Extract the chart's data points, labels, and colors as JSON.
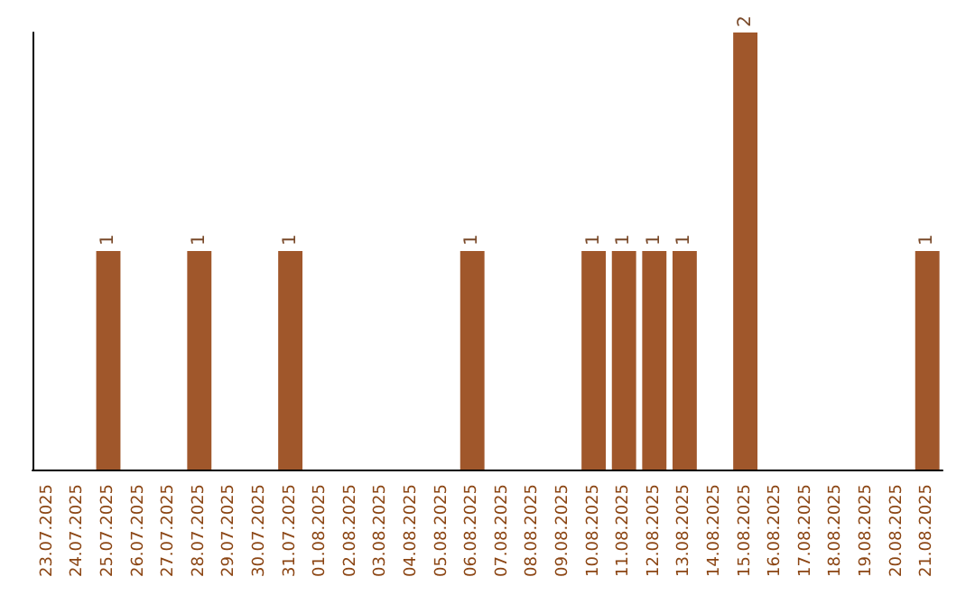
{
  "chart_data": {
    "type": "bar",
    "categories": [
      "23.07.2025",
      "24.07.2025",
      "25.07.2025",
      "26.07.2025",
      "27.07.2025",
      "28.07.2025",
      "29.07.2025",
      "30.07.2025",
      "31.07.2025",
      "01.08.2025",
      "02.08.2025",
      "03.08.2025",
      "04.08.2025",
      "05.08.2025",
      "06.08.2025",
      "07.08.2025",
      "08.08.2025",
      "09.08.2025",
      "10.08.2025",
      "11.08.2025",
      "12.08.2025",
      "13.08.2025",
      "14.08.2025",
      "15.08.2025",
      "16.08.2025",
      "17.08.2025",
      "18.08.2025",
      "19.08.2025",
      "20.08.2025",
      "21.08.2025"
    ],
    "values": [
      0,
      0,
      1,
      0,
      0,
      1,
      0,
      0,
      1,
      0,
      0,
      0,
      0,
      0,
      1,
      0,
      0,
      0,
      1,
      1,
      1,
      1,
      0,
      2,
      0,
      0,
      0,
      0,
      0,
      1
    ],
    "value_labels": [
      null,
      null,
      "1",
      null,
      null,
      "1",
      null,
      null,
      "1",
      null,
      null,
      null,
      null,
      null,
      "1",
      null,
      null,
      null,
      "1",
      "1",
      "1",
      "1",
      null,
      "2",
      null,
      null,
      null,
      null,
      null,
      "1"
    ],
    "color": "#a0572b",
    "tick_labels": "x"
  }
}
